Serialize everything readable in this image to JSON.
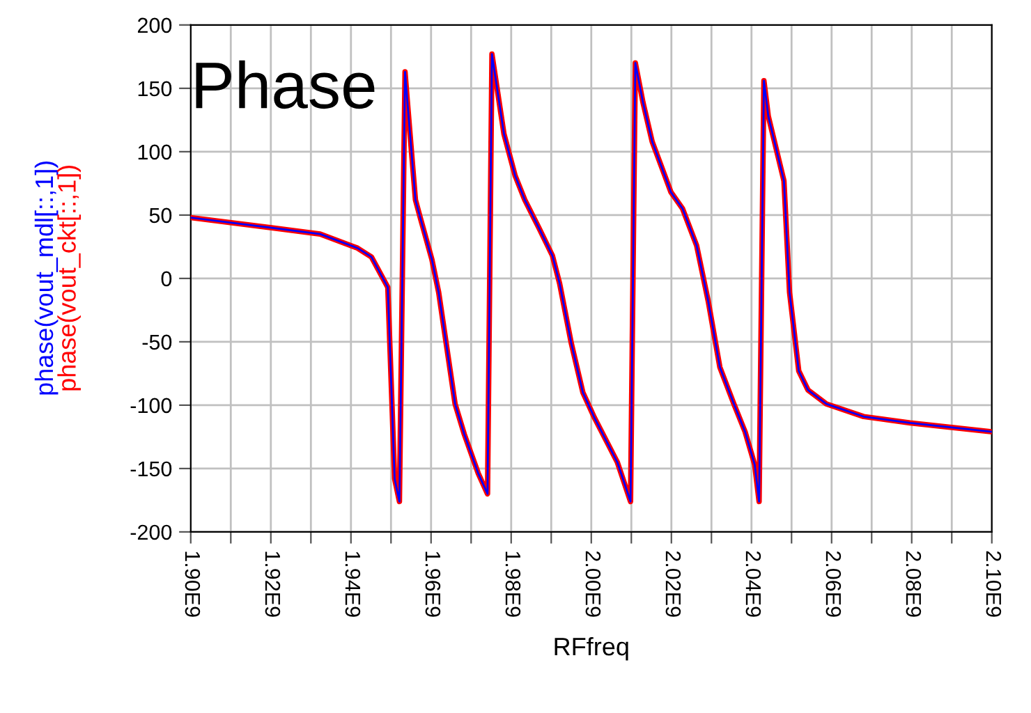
{
  "chart_data": {
    "type": "line",
    "title": "Phase",
    "xlabel": "RFfreq",
    "x": [
      1900000000.0,
      1920200000.0,
      1932300000.0,
      1941600000.0,
      1945100000.0,
      1948000000.0,
      1949200000.0,
      1950900000.0,
      1952100000.0,
      1953500000.0,
      1954000000.0,
      1956100000.0,
      1957300000.0,
      1960200000.0,
      1961900000.0,
      1966000000.0,
      1968300000.0,
      1971800000.0,
      1974100000.0,
      1975200000.0,
      1978200000.0,
      1981000000.0,
      1983400000.0,
      1986900000.0,
      1990300000.0,
      1992100000.0,
      1995000000.0,
      1997900000.0,
      2000800000.0,
      2006500000.0,
      2009800000.0,
      2011000000.0,
      2012900000.0,
      2015200000.0,
      2019900000.0,
      2022800000.0,
      2026300000.0,
      2029200000.0,
      2032100000.0,
      2035600000.0,
      2038400000.0,
      2040800000.0,
      2041900000.0,
      2043100000.0,
      2044200000.0,
      2048100000.0,
      2049500000.0,
      2051800000.0,
      2054100000.0,
      2058700000.0,
      2068000000.0,
      2079600000.0,
      2091200000.0,
      2099900000.0
    ],
    "series": [
      {
        "name": "phase(vout_ckt[::,1])",
        "color": "#ff0000",
        "values": [
          48,
          40,
          35,
          24,
          17,
          0,
          -7,
          -158,
          -176,
          163,
          143,
          62,
          48,
          15,
          -11,
          -99,
          -123,
          -154,
          -170,
          177,
          114,
          81,
          62,
          40,
          18,
          -4,
          -51,
          -90,
          -110,
          -145,
          -176,
          170,
          139,
          108,
          68,
          55,
          26,
          -18,
          -70,
          -99,
          -121,
          -147,
          -176,
          156,
          128,
          77,
          -11,
          -73,
          -88,
          -99,
          -109,
          -114,
          -118,
          -121
        ]
      },
      {
        "name": "phase(vout_mdl[::,1])",
        "color": "#0000ff",
        "values": [
          48,
          40,
          35,
          24,
          17,
          0,
          -7,
          -158,
          -176,
          163,
          143,
          62,
          48,
          15,
          -11,
          -99,
          -123,
          -154,
          -170,
          177,
          114,
          81,
          62,
          40,
          18,
          -4,
          -51,
          -90,
          -110,
          -145,
          -176,
          170,
          139,
          108,
          68,
          55,
          26,
          -18,
          -70,
          -99,
          -121,
          -147,
          -176,
          156,
          128,
          77,
          -11,
          -73,
          -88,
          -99,
          -109,
          -114,
          -118,
          -121
        ]
      }
    ],
    "xlim": [
      1900000000.0,
      2100000000.0
    ],
    "xticks": [
      {
        "value": 1900000000.0,
        "label": "1.90E9"
      },
      {
        "value": 1910000000.0,
        "label": null
      },
      {
        "value": 1920000000.0,
        "label": "1.92E9"
      },
      {
        "value": 1930000000.0,
        "label": null
      },
      {
        "value": 1940000000.0,
        "label": "1.94E9"
      },
      {
        "value": 1950000000.0,
        "label": null
      },
      {
        "value": 1960000000.0,
        "label": "1.96E9"
      },
      {
        "value": 1970000000.0,
        "label": null
      },
      {
        "value": 1980000000.0,
        "label": "1.98E9"
      },
      {
        "value": 1990000000.0,
        "label": null
      },
      {
        "value": 2000000000.0,
        "label": "2.00E9"
      },
      {
        "value": 2010000000.0,
        "label": null
      },
      {
        "value": 2020000000.0,
        "label": "2.02E9"
      },
      {
        "value": 2030000000.0,
        "label": null
      },
      {
        "value": 2040000000.0,
        "label": "2.04E9"
      },
      {
        "value": 2050000000.0,
        "label": null
      },
      {
        "value": 2060000000.0,
        "label": "2.06E9"
      },
      {
        "value": 2070000000.0,
        "label": null
      },
      {
        "value": 2080000000.0,
        "label": "2.08E9"
      },
      {
        "value": 2090000000.0,
        "label": null
      },
      {
        "value": 2100000000.0,
        "label": "2.10E9"
      }
    ],
    "ylim": [
      -200,
      200
    ],
    "yticks": [
      -200,
      -150,
      -100,
      -50,
      0,
      50,
      100,
      150,
      200
    ],
    "grid": true,
    "legend": "left",
    "marker": "none",
    "line_style": "solid"
  }
}
